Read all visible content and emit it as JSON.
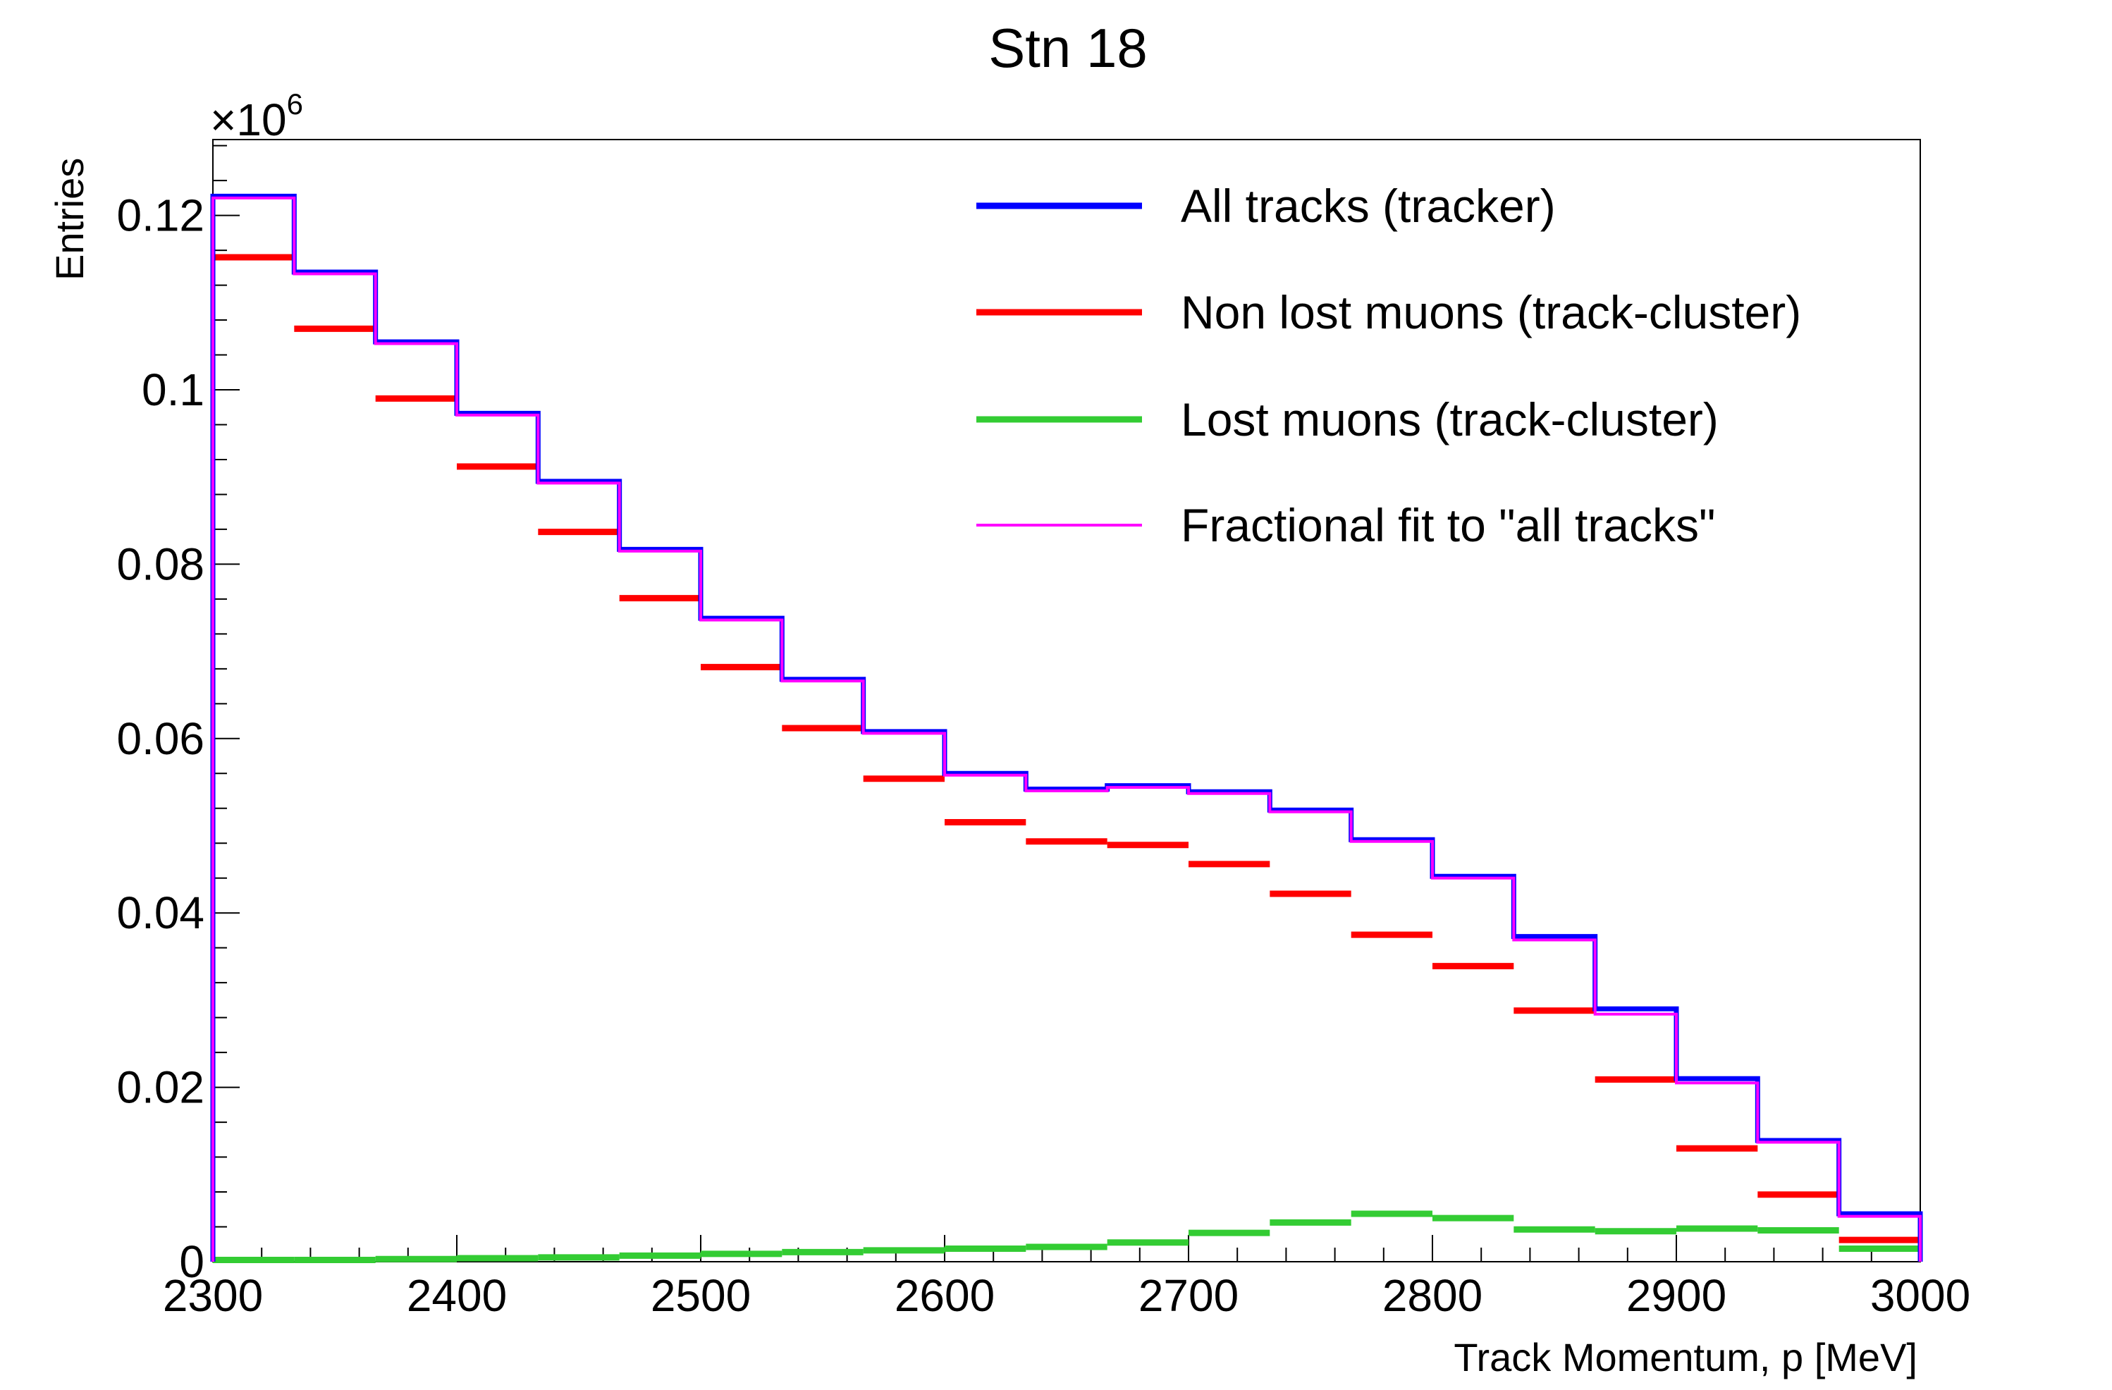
{
  "chart_data": {
    "type": "histogram",
    "title": "Stn 18",
    "xlabel": "Track Momentum, p [MeV]",
    "ylabel": "Entries",
    "y_multiplier": "×10",
    "y_multiplier_exp": "6",
    "xlim": [
      2300,
      3000
    ],
    "ylim": [
      0,
      0.1287
    ],
    "x_ticks": [
      2300,
      2400,
      2500,
      2600,
      2700,
      2800,
      2900,
      3000
    ],
    "x_tick_labels": [
      "2300",
      "2400",
      "2500",
      "2600",
      "2700",
      "2800",
      "2900",
      "3000"
    ],
    "y_ticks": [
      0,
      0.02,
      0.04,
      0.06,
      0.08,
      0.1,
      0.12
    ],
    "y_tick_labels": [
      "0",
      "0.02",
      "0.04",
      "0.06",
      "0.08",
      "0.1",
      "0.12"
    ],
    "bin_edges": [
      2300,
      2333.33,
      2366.67,
      2400,
      2433.33,
      2466.67,
      2500,
      2533.33,
      2566.67,
      2600,
      2633.33,
      2666.67,
      2700,
      2733.33,
      2766.67,
      2800,
      2833.33,
      2866.67,
      2900,
      2933.33,
      2966.67,
      3000
    ],
    "grid": false,
    "legend_position": "top-right",
    "series": [
      {
        "name": "All tracks (tracker)",
        "color": "#0000ff",
        "style": "step",
        "values": [
          0.1222,
          0.1135,
          0.1055,
          0.0973,
          0.0895,
          0.0817,
          0.0738,
          0.0668,
          0.0608,
          0.056,
          0.0542,
          0.0546,
          0.0539,
          0.0518,
          0.0484,
          0.0442,
          0.0373,
          0.029,
          0.021,
          0.0139,
          0.0055
        ]
      },
      {
        "name": "Non lost muons (track-cluster)",
        "color": "#ff0000",
        "style": "segments",
        "values": [
          0.1152,
          0.107,
          0.099,
          0.0912,
          0.0837,
          0.0761,
          0.0682,
          0.0612,
          0.0554,
          0.0504,
          0.0482,
          0.0478,
          0.0456,
          0.0422,
          0.0375,
          0.0339,
          0.0288,
          0.0209,
          0.013,
          0.0077,
          0.0025
        ]
      },
      {
        "name": "Lost muons (track-cluster)",
        "color": "#33cc33",
        "style": "segments",
        "values": [
          0.0002,
          0.0002,
          0.0003,
          0.0004,
          0.0005,
          0.0007,
          0.0009,
          0.0011,
          0.0013,
          0.0015,
          0.0017,
          0.0022,
          0.0033,
          0.0045,
          0.0055,
          0.005,
          0.0037,
          0.0035,
          0.0038,
          0.0036,
          0.0015
        ]
      },
      {
        "name": "Fractional fit to \"all tracks\"",
        "color": "#ff00ff",
        "style": "step",
        "values": [
          0.122,
          0.1133,
          0.1053,
          0.0971,
          0.0893,
          0.0815,
          0.0736,
          0.0666,
          0.0606,
          0.0558,
          0.054,
          0.0544,
          0.0537,
          0.0516,
          0.0482,
          0.044,
          0.0369,
          0.0284,
          0.0205,
          0.0137,
          0.0052
        ]
      }
    ]
  }
}
